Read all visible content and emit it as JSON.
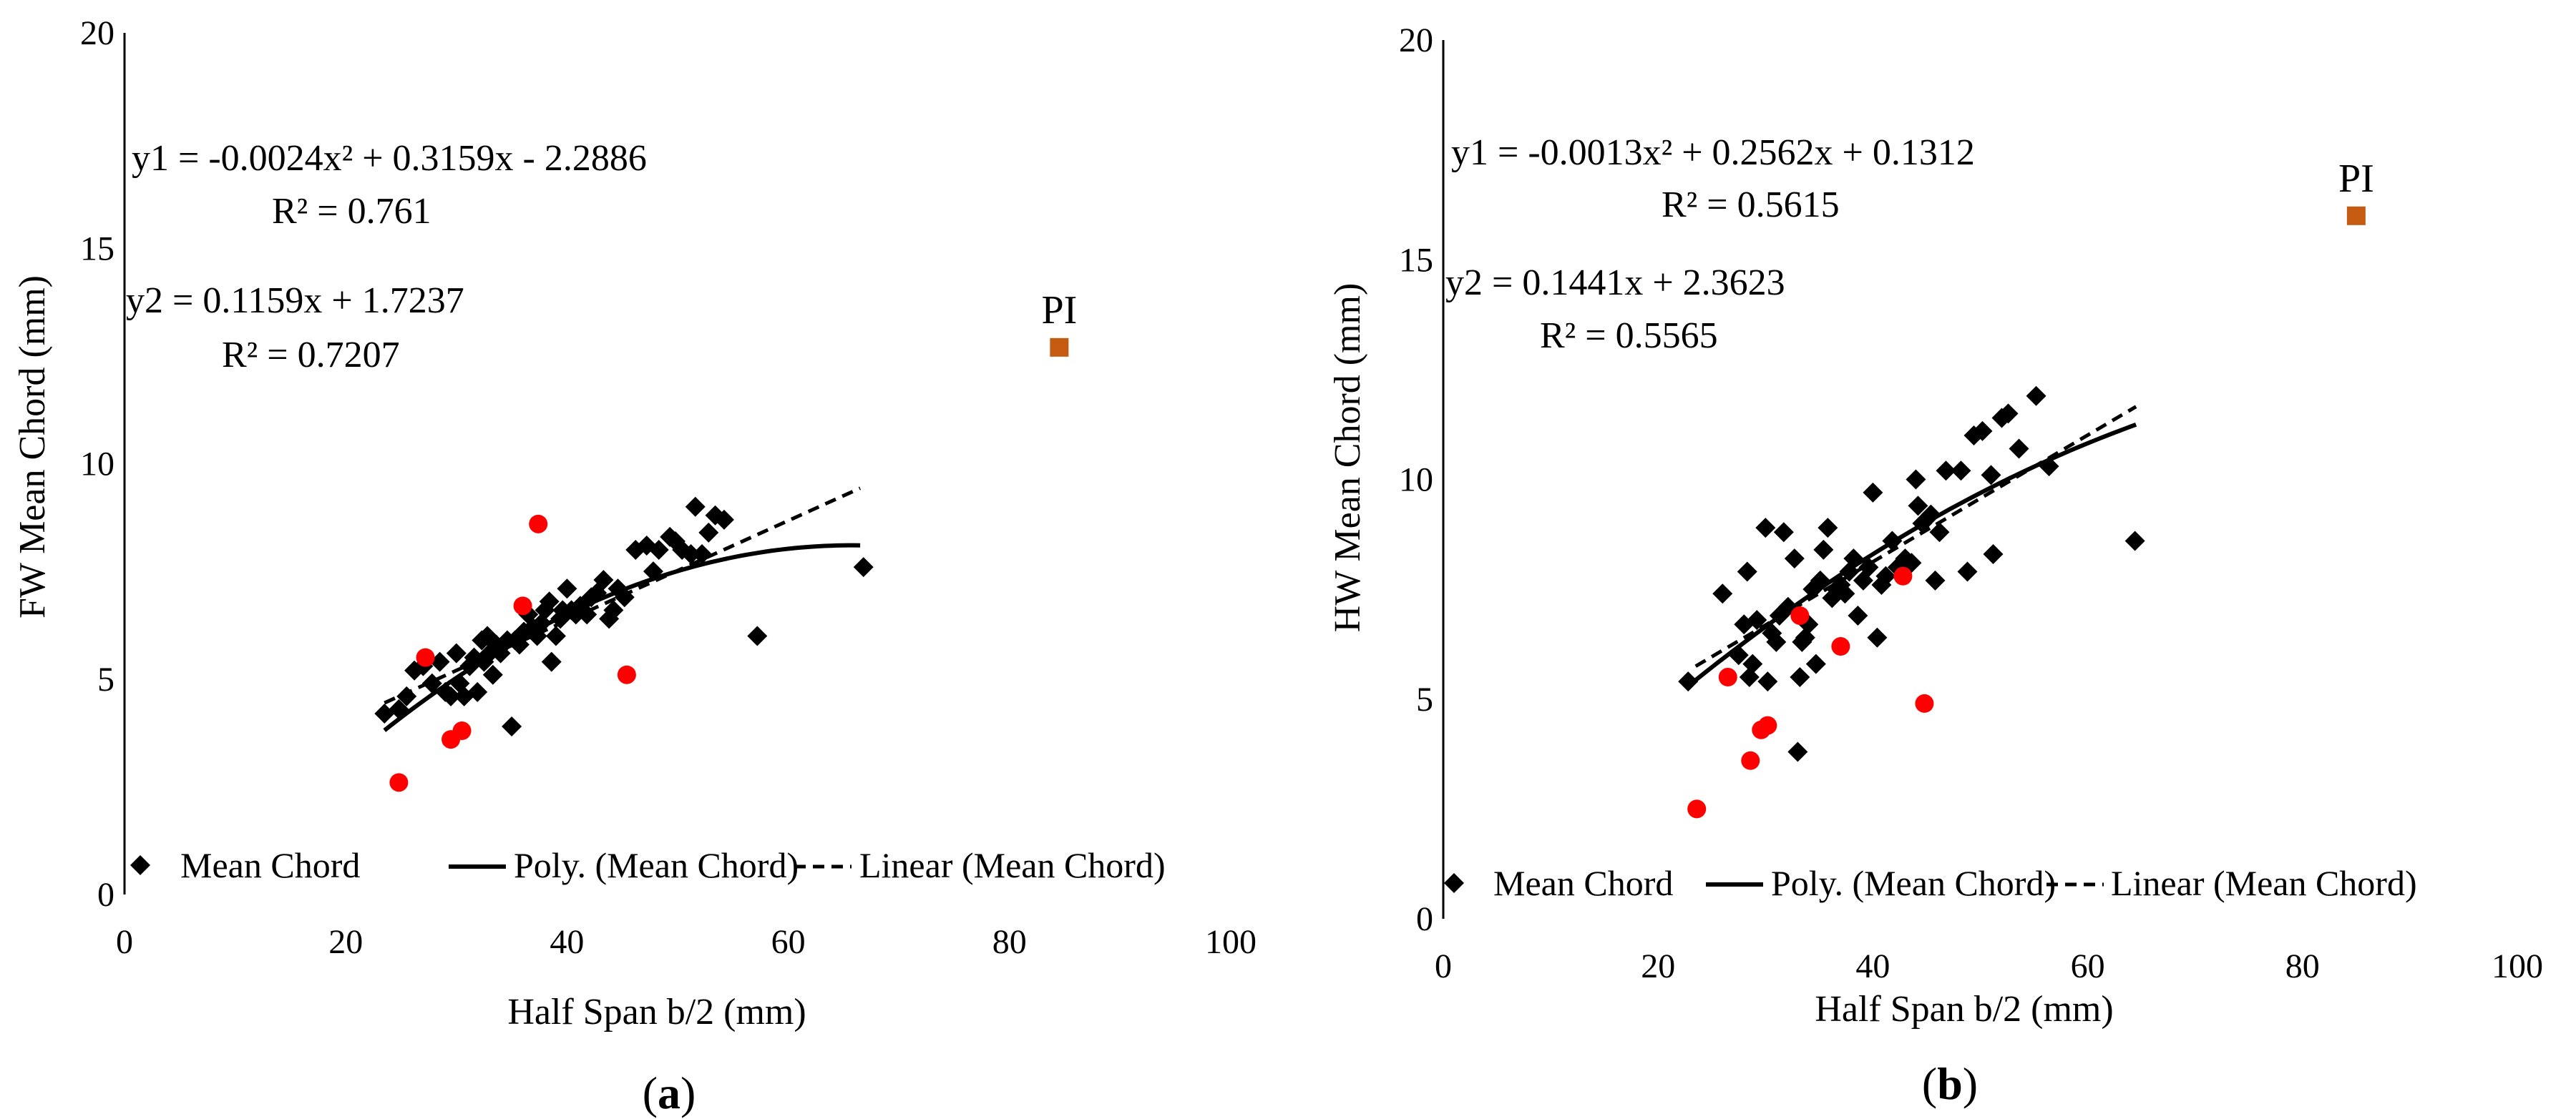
{
  "chart_data": [
    {
      "type": "scatter",
      "panel_label": "(a)",
      "panel_letter": "a",
      "xlabel": "Half Span b/2 (mm)",
      "ylabel": "FW Mean Chord (mm)",
      "xlim": [
        0,
        100
      ],
      "ylim": [
        0,
        20
      ],
      "x_ticks": [
        "0",
        "20",
        "40",
        "60",
        "80",
        "100"
      ],
      "y_ticks": [
        "0",
        "5",
        "10",
        "15",
        "20"
      ],
      "grid": false,
      "equations": {
        "poly": "y1 = -0.0024x² + 0.3159x - 2.2886",
        "poly_r2": "R² = 0.761",
        "linear": "y2 = 0.1159x + 1.7237",
        "linear_r2": "R² = 0.7207"
      },
      "poly_fit": {
        "a": -0.0024,
        "b": 0.3159,
        "c": -2.2886,
        "x_range": [
          23.5,
          66.5
        ]
      },
      "linear_fit": {
        "m": 0.1159,
        "c": 1.7237,
        "x_range": [
          23.5,
          66.5
        ]
      },
      "legend": {
        "position": "bottom",
        "entries": [
          "Mean Chord",
          "Poly. (Mean Chord)",
          "Linear (Mean Chord)"
        ]
      },
      "series": [
        {
          "name": "Mean Chord",
          "marker": "diamond",
          "color": "#000000",
          "points": [
            [
              23.5,
              4.2
            ],
            [
              24.8,
              4.3
            ],
            [
              25.5,
              4.6
            ],
            [
              26.2,
              5.2
            ],
            [
              27.0,
              5.3
            ],
            [
              27.8,
              4.9
            ],
            [
              28.5,
              5.4
            ],
            [
              29.0,
              4.7
            ],
            [
              29.5,
              4.6
            ],
            [
              30.0,
              5.6
            ],
            [
              30.3,
              4.9
            ],
            [
              30.7,
              4.6
            ],
            [
              31.2,
              5.3
            ],
            [
              31.6,
              5.5
            ],
            [
              31.9,
              4.7
            ],
            [
              32.3,
              5.9
            ],
            [
              32.5,
              5.4
            ],
            [
              32.8,
              6.0
            ],
            [
              33.0,
              5.6
            ],
            [
              33.3,
              5.1
            ],
            [
              33.6,
              5.8
            ],
            [
              34.0,
              5.6
            ],
            [
              34.6,
              5.9
            ],
            [
              35.0,
              3.9
            ],
            [
              35.3,
              5.9
            ],
            [
              35.7,
              5.8
            ],
            [
              36.1,
              6.1
            ],
            [
              36.5,
              6.5
            ],
            [
              36.9,
              6.2
            ],
            [
              37.3,
              6.0
            ],
            [
              37.7,
              6.3
            ],
            [
              38.0,
              6.6
            ],
            [
              38.4,
              6.8
            ],
            [
              38.6,
              5.4
            ],
            [
              39.0,
              6.0
            ],
            [
              39.4,
              6.4
            ],
            [
              39.6,
              6.6
            ],
            [
              40.0,
              7.1
            ],
            [
              40.4,
              6.6
            ],
            [
              40.8,
              6.5
            ],
            [
              41.2,
              6.7
            ],
            [
              41.8,
              6.5
            ],
            [
              42.2,
              6.9
            ],
            [
              42.7,
              7.0
            ],
            [
              43.3,
              7.3
            ],
            [
              43.8,
              6.4
            ],
            [
              44.2,
              6.6
            ],
            [
              44.6,
              7.1
            ],
            [
              45.2,
              6.9
            ],
            [
              46.2,
              8.0
            ],
            [
              47.2,
              8.1
            ],
            [
              47.8,
              7.5
            ],
            [
              48.3,
              8.0
            ],
            [
              49.3,
              8.3
            ],
            [
              49.8,
              8.2
            ],
            [
              50.4,
              8.0
            ],
            [
              51.2,
              7.9
            ],
            [
              51.6,
              9.0
            ],
            [
              52.2,
              7.9
            ],
            [
              52.8,
              8.4
            ],
            [
              53.4,
              8.8
            ],
            [
              54.2,
              8.7
            ],
            [
              57.2,
              6.0
            ],
            [
              66.8,
              7.6
            ]
          ]
        },
        {
          "name": "Red points",
          "marker": "circle",
          "color": "#ff0000",
          "points": [
            [
              24.8,
              2.6
            ],
            [
              27.2,
              5.5
            ],
            [
              29.5,
              3.6
            ],
            [
              30.5,
              3.8
            ],
            [
              36.0,
              6.7
            ],
            [
              37.4,
              8.6
            ],
            [
              45.4,
              5.1
            ]
          ]
        },
        {
          "name": "PI",
          "marker": "square",
          "color": "#c55a11",
          "label": "PI",
          "points": [
            [
              84.5,
              12.7
            ]
          ]
        }
      ]
    },
    {
      "type": "scatter",
      "panel_label": "(b)",
      "panel_letter": "b",
      "xlabel": "Half Span b/2 (mm)",
      "ylabel": "HW Mean Chord (mm)",
      "xlim": [
        0,
        100
      ],
      "ylim": [
        0,
        20
      ],
      "x_ticks": [
        "0",
        "20",
        "40",
        "60",
        "80",
        "100"
      ],
      "y_ticks": [
        "0",
        "5",
        "10",
        "15",
        "20"
      ],
      "grid": false,
      "equations": {
        "poly": "y1 = -0.0013x² + 0.2562x + 0.1312",
        "poly_r2": "R² = 0.5615",
        "linear": "y2 = 0.1441x + 2.3623",
        "linear_r2": "R² = 0.5565"
      },
      "poly_fit": {
        "a": -0.0013,
        "b": 0.2562,
        "c": 0.1312,
        "x_range": [
          23.5,
          64.5
        ]
      },
      "linear_fit": {
        "m": 0.1441,
        "c": 2.3623,
        "x_range": [
          23.5,
          64.5
        ]
      },
      "legend": {
        "position": "bottom",
        "entries": [
          "Mean Chord",
          "Poly. (Mean Chord)",
          "Linear (Mean Chord)"
        ]
      },
      "series": [
        {
          "name": "Mean Chord",
          "marker": "diamond",
          "color": "#000000",
          "points": [
            [
              22.8,
              5.4
            ],
            [
              26.0,
              7.4
            ],
            [
              27.5,
              6.0
            ],
            [
              28.0,
              6.7
            ],
            [
              28.3,
              7.9
            ],
            [
              28.5,
              5.5
            ],
            [
              28.8,
              5.8
            ],
            [
              29.2,
              6.8
            ],
            [
              30.0,
              8.9
            ],
            [
              30.2,
              5.4
            ],
            [
              30.6,
              6.5
            ],
            [
              31.0,
              6.3
            ],
            [
              31.3,
              6.9
            ],
            [
              31.7,
              8.8
            ],
            [
              32.1,
              7.1
            ],
            [
              32.7,
              8.2
            ],
            [
              33.0,
              3.8
            ],
            [
              33.2,
              5.5
            ],
            [
              33.4,
              6.3
            ],
            [
              33.7,
              6.4
            ],
            [
              34.0,
              6.7
            ],
            [
              34.4,
              7.5
            ],
            [
              34.7,
              5.8
            ],
            [
              35.1,
              7.7
            ],
            [
              35.4,
              8.4
            ],
            [
              35.8,
              8.9
            ],
            [
              36.2,
              7.3
            ],
            [
              36.6,
              7.5
            ],
            [
              37.0,
              7.6
            ],
            [
              37.4,
              7.4
            ],
            [
              37.8,
              7.9
            ],
            [
              38.2,
              8.2
            ],
            [
              38.6,
              6.9
            ],
            [
              39.1,
              7.7
            ],
            [
              39.6,
              8.0
            ],
            [
              40.0,
              9.7
            ],
            [
              40.4,
              6.4
            ],
            [
              40.8,
              7.6
            ],
            [
              41.2,
              7.8
            ],
            [
              41.8,
              8.6
            ],
            [
              42.3,
              8.0
            ],
            [
              43.0,
              8.2
            ],
            [
              43.6,
              8.1
            ],
            [
              44.0,
              10.0
            ],
            [
              44.2,
              9.4
            ],
            [
              44.6,
              9.0
            ],
            [
              45.4,
              9.2
            ],
            [
              45.8,
              7.7
            ],
            [
              46.2,
              8.8
            ],
            [
              46.8,
              10.2
            ],
            [
              48.2,
              10.2
            ],
            [
              48.8,
              7.9
            ],
            [
              49.4,
              11.0
            ],
            [
              50.2,
              11.1
            ],
            [
              51.0,
              10.1
            ],
            [
              51.2,
              8.3
            ],
            [
              52.0,
              11.4
            ],
            [
              52.6,
              11.5
            ],
            [
              53.6,
              10.7
            ],
            [
              55.2,
              11.9
            ],
            [
              56.4,
              10.3
            ],
            [
              64.4,
              8.6
            ]
          ]
        },
        {
          "name": "Red points",
          "marker": "circle",
          "color": "#ff0000",
          "points": [
            [
              23.6,
              2.5
            ],
            [
              26.5,
              5.5
            ],
            [
              28.6,
              3.6
            ],
            [
              29.6,
              4.3
            ],
            [
              30.2,
              4.4
            ],
            [
              33.2,
              6.9
            ],
            [
              37.0,
              6.2
            ],
            [
              42.8,
              7.8
            ],
            [
              44.8,
              4.9
            ]
          ]
        },
        {
          "name": "PI",
          "marker": "square",
          "color": "#c55a11",
          "label": "PI",
          "points": [
            [
              85.0,
              16.0
            ]
          ]
        }
      ]
    }
  ]
}
